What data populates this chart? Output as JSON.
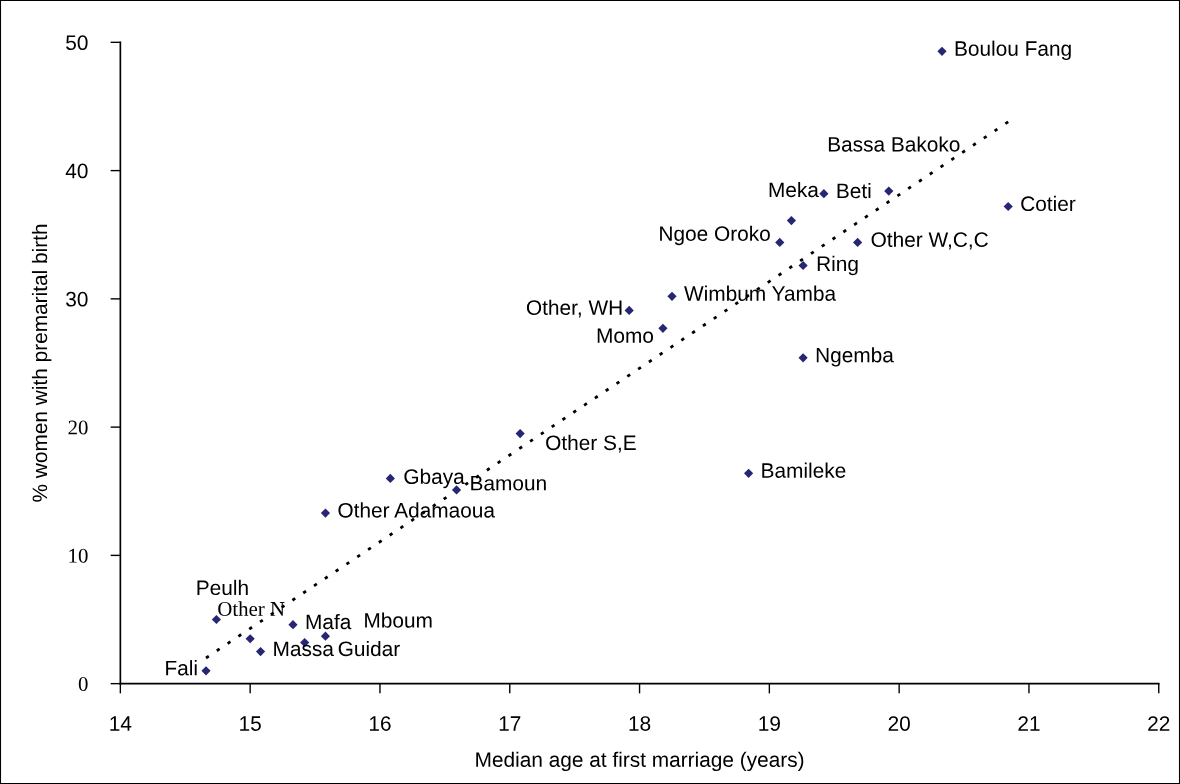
{
  "chart_data": {
    "type": "scatter",
    "xlabel": "Median age at first marriage (years)",
    "ylabel": "% women with premarital birth",
    "xlim": [
      14,
      22
    ],
    "ylim": [
      0,
      50
    ],
    "xticks": [
      14,
      15,
      16,
      17,
      18,
      19,
      20,
      21,
      22
    ],
    "yticks": [
      0,
      10,
      20,
      30,
      40,
      50
    ],
    "grid": false,
    "marker": "diamond",
    "series": [
      {
        "color": "#262673",
        "x": [
          14.66,
          14.74,
          15.0,
          15.08,
          15.33,
          15.42,
          15.58,
          15.58,
          16.08,
          16.59,
          17.08,
          17.92,
          18.18,
          18.25,
          19.26,
          19.26,
          18.84,
          19.08,
          19.17,
          19.42,
          19.92,
          19.68,
          20.84,
          20.33
        ],
        "values": [
          1.0,
          5.0,
          3.5,
          2.5,
          4.6,
          3.2,
          3.7,
          13.3,
          16.0,
          15.1,
          19.5,
          29.1,
          27.7,
          30.2,
          32.6,
          25.4,
          16.4,
          34.4,
          36.1,
          38.2,
          38.4,
          34.4,
          37.2,
          49.3
        ]
      },
      {
        "type": "line",
        "color": "#000000",
        "line_style": "dotted",
        "marker": "none",
        "x": [
          14.66,
          20.84
        ],
        "values": [
          2.0,
          43.8
        ]
      }
    ],
    "annotations": [
      {
        "text": "Fali",
        "x": 14.66,
        "y": 1.0
      },
      {
        "text": "Peulh",
        "x": 14.74,
        "y": 5.0
      },
      {
        "text": "Other N",
        "x": 15.0,
        "y": 3.5
      },
      {
        "text": "Massa",
        "x": 15.08,
        "y": 2.5
      },
      {
        "text": "Mafa",
        "x": 15.33,
        "y": 4.6
      },
      {
        "text": "Guidar",
        "x": 15.42,
        "y": 3.2
      },
      {
        "text": "Mboum",
        "x": 15.58,
        "y": 3.7
      },
      {
        "text": "Other Adamaoua",
        "x": 15.58,
        "y": 13.3
      },
      {
        "text": "Gbaya",
        "x": 16.08,
        "y": 16.0
      },
      {
        "text": "Bamoun",
        "x": 16.59,
        "y": 15.1
      },
      {
        "text": "Other S,E",
        "x": 17.08,
        "y": 19.5
      },
      {
        "text": "Other, WH",
        "x": 17.92,
        "y": 29.1
      },
      {
        "text": "Momo",
        "x": 18.18,
        "y": 27.7
      },
      {
        "text": "Wimbum Yamba",
        "x": 18.25,
        "y": 30.2
      },
      {
        "text": "Ring",
        "x": 19.26,
        "y": 32.6
      },
      {
        "text": "Ngemba",
        "x": 19.26,
        "y": 25.4
      },
      {
        "text": "Bamileke",
        "x": 18.84,
        "y": 16.4
      },
      {
        "text": "Ngoe Oroko",
        "x": 19.08,
        "y": 34.4
      },
      {
        "text": "Meka",
        "x": 19.17,
        "y": 36.1
      },
      {
        "text": "Beti",
        "x": 19.42,
        "y": 38.2
      },
      {
        "text": "Bassa Bakoko",
        "x": 19.92,
        "y": 38.4
      },
      {
        "text": "Other W,C,C",
        "x": 19.68,
        "y": 34.4
      },
      {
        "text": "Cotier",
        "x": 20.84,
        "y": 37.2
      },
      {
        "text": "Boulou Fang",
        "x": 20.33,
        "y": 49.3
      }
    ]
  }
}
